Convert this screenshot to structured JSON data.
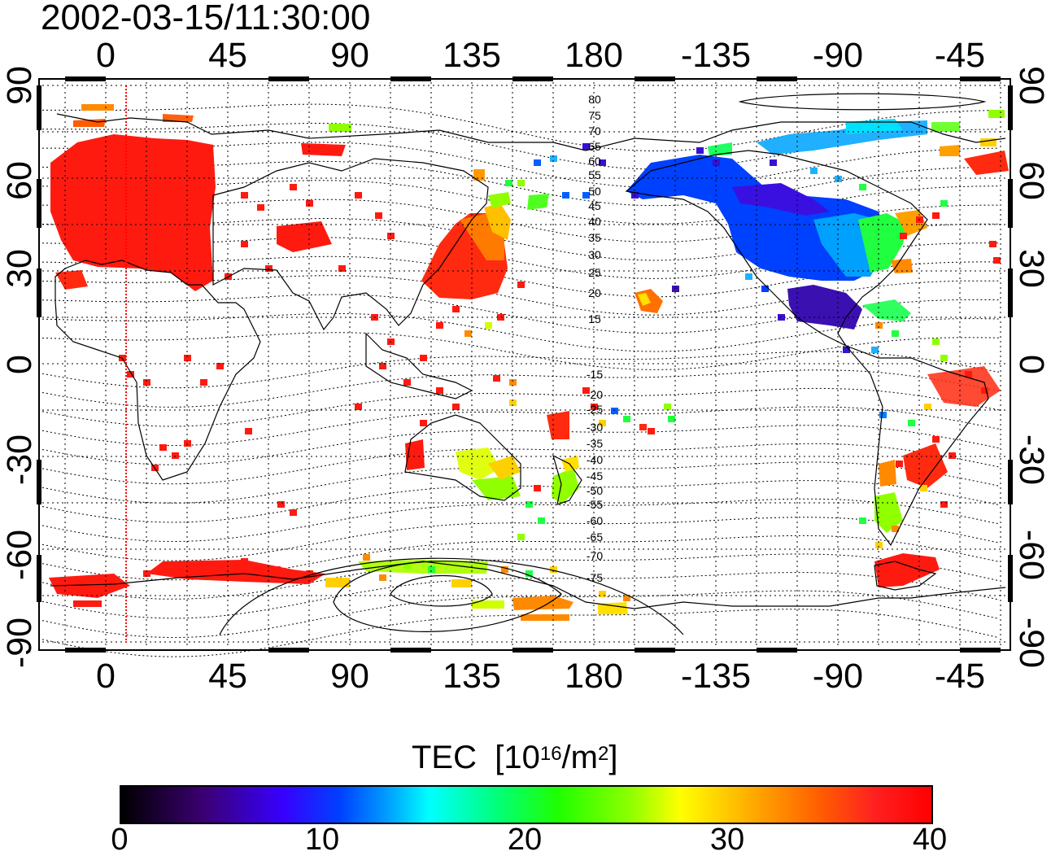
{
  "title": "2002-03-15/11:30:00",
  "map": {
    "top_lon_labels": [
      "0",
      "45",
      "90",
      "135",
      "180",
      "-135",
      "-90",
      "-45"
    ],
    "bottom_lon_labels": [
      "0",
      "45",
      "90",
      "135",
      "180",
      "-135",
      "-90",
      "-45"
    ],
    "left_lat_labels": [
      "90",
      "60",
      "30",
      "0",
      "-30",
      "-60",
      "-90"
    ],
    "right_lat_labels": [
      "90",
      "60",
      "30",
      "0",
      "-30",
      "-60",
      "-90"
    ],
    "contour_labels_north": [
      "80",
      "75",
      "70",
      "65",
      "60",
      "55",
      "50",
      "45",
      "40",
      "35",
      "30",
      "25",
      "20",
      "15"
    ],
    "contour_labels_south": [
      "-15",
      "-20",
      "-25",
      "-30",
      "-35",
      "-40",
      "-45",
      "-50",
      "-55",
      "-60",
      "-65",
      "-70",
      "-75"
    ]
  },
  "colorbar": {
    "label": "TEC",
    "unit_prefix": "[10",
    "unit_exp": "16",
    "unit_mid": "/m",
    "unit_exp2": "2",
    "unit_suffix": "]",
    "ticks": [
      "0",
      "10",
      "20",
      "30",
      "40"
    ],
    "min": 0,
    "max": 40
  }
}
